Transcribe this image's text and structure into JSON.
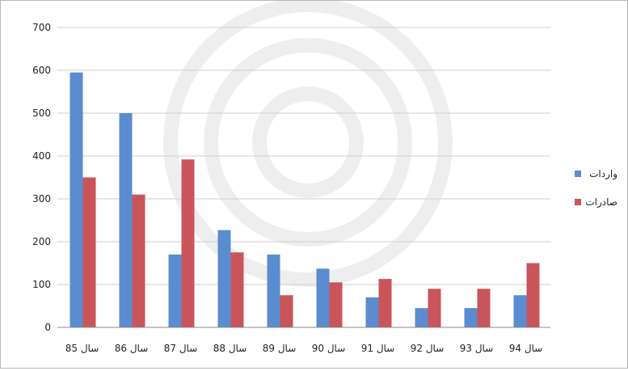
{
  "chart_data": {
    "type": "bar",
    "categories": [
      "سال 85",
      "سال 86",
      "سال 87",
      "سال 88",
      "سال 89",
      "سال 90",
      "سال 91",
      "سال 92",
      "سال 93",
      "سال 94"
    ],
    "series": [
      {
        "name": "واردات",
        "color": "#5b8ccf",
        "values": [
          595,
          500,
          170,
          227,
          170,
          137,
          70,
          45,
          45,
          75
        ]
      },
      {
        "name": "صادرات",
        "color": "#c9555a",
        "values": [
          350,
          310,
          392,
          175,
          75,
          105,
          113,
          90,
          90,
          150
        ]
      }
    ],
    "yticks": [
      "0",
      "100",
      "200",
      "300",
      "400",
      "500",
      "600",
      "700"
    ],
    "ylim": [
      0,
      700
    ],
    "grid": true,
    "legend": "right"
  }
}
